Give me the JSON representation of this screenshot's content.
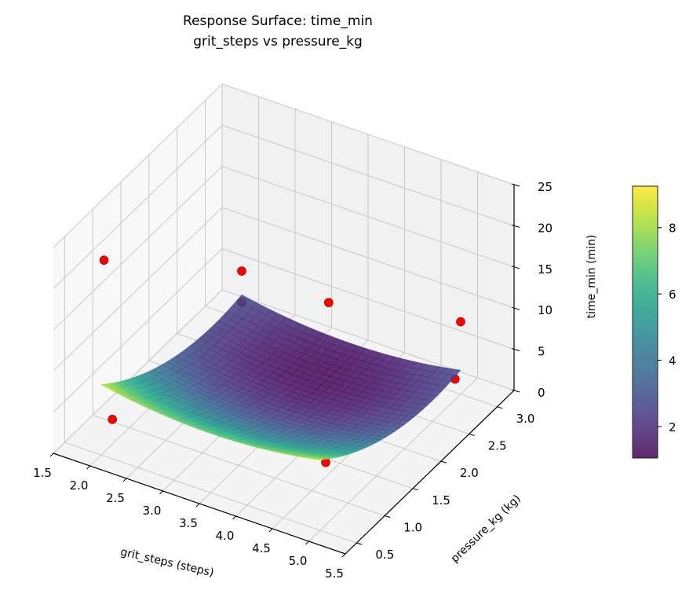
{
  "chart_data": {
    "type": "surface3d",
    "title": "Response Surface: time_min",
    "subtitle": "grit_steps vs pressure_kg",
    "xlabel": "grit_steps (steps)",
    "ylabel": "pressure_kg (kg)",
    "zlabel": "time_min (min)",
    "xlim": [
      1.5,
      5.5
    ],
    "ylim": [
      0.3,
      3.3
    ],
    "zlim": [
      0,
      25
    ],
    "xticks": [
      "1.5",
      "2.0",
      "2.5",
      "3.0",
      "3.5",
      "4.0",
      "4.5",
      "5.0",
      "5.5"
    ],
    "yticks": [
      "0.5",
      "1.0",
      "1.5",
      "2.0",
      "2.5",
      "3.0"
    ],
    "zticks": [
      "0",
      "5",
      "10",
      "15",
      "20",
      "25"
    ],
    "grid": true,
    "colormap": "viridis",
    "surface": {
      "x_range": [
        2.0,
        5.0
      ],
      "y_range": [
        0.5,
        3.0
      ],
      "model": "z = 1.2 + 0.6*(x-3.5)^2 + 1.5*(y-2.5)^2"
    },
    "points_color": "#ff0000",
    "points": [
      {
        "x": 1.5,
        "y": 1.2,
        "z": 17.5
      },
      {
        "x": 2.0,
        "y": 3.0,
        "z": 5.8
      },
      {
        "x": 2.0,
        "y": 3.0,
        "z": 2.0
      },
      {
        "x": 3.5,
        "y": 2.6,
        "z": 9.2
      },
      {
        "x": 5.0,
        "y": 3.0,
        "z": 8.8
      },
      {
        "x": 5.0,
        "y": 2.9,
        "z": 2.5
      },
      {
        "x": 2.0,
        "y": 0.7,
        "z": 3.0
      },
      {
        "x": 5.0,
        "y": 0.6,
        "z": 7.6
      }
    ],
    "colorbar": {
      "range": [
        1.05,
        9.25
      ],
      "ticks": [
        "2",
        "4",
        "6",
        "8"
      ]
    }
  }
}
